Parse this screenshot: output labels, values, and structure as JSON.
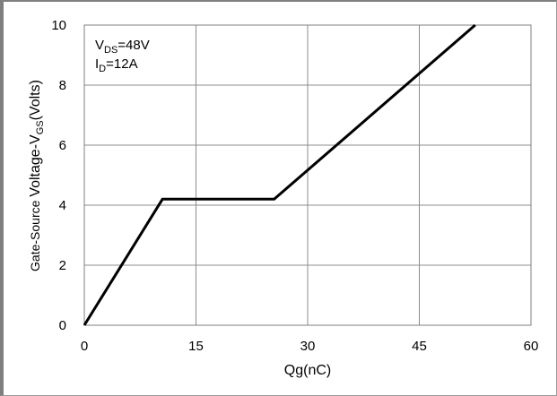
{
  "chart_data": {
    "type": "line",
    "title": "",
    "xlabel": "Qg(nC)",
    "ylabel": {
      "prefix": "Gate-Source ",
      "main": "Voltage-V",
      "sub": "GS",
      "suffix": "(Volts)"
    },
    "xlim": [
      0,
      60
    ],
    "ylim": [
      0,
      10
    ],
    "x_ticks": [
      "0",
      "15",
      "30",
      "45",
      "60"
    ],
    "y_ticks": [
      "0",
      "2",
      "4",
      "6",
      "8",
      "10"
    ],
    "grid": true,
    "annotations": [
      {
        "main": "V",
        "sub": "DS",
        "rest": "=48V"
      },
      {
        "main": "I",
        "sub": "D",
        "rest": "=12A"
      }
    ],
    "series": [
      {
        "x": [
          0,
          10.5,
          25.5,
          52.5
        ],
        "y": [
          0,
          4.2,
          4.2,
          10.0
        ],
        "color": "#000000"
      }
    ]
  }
}
